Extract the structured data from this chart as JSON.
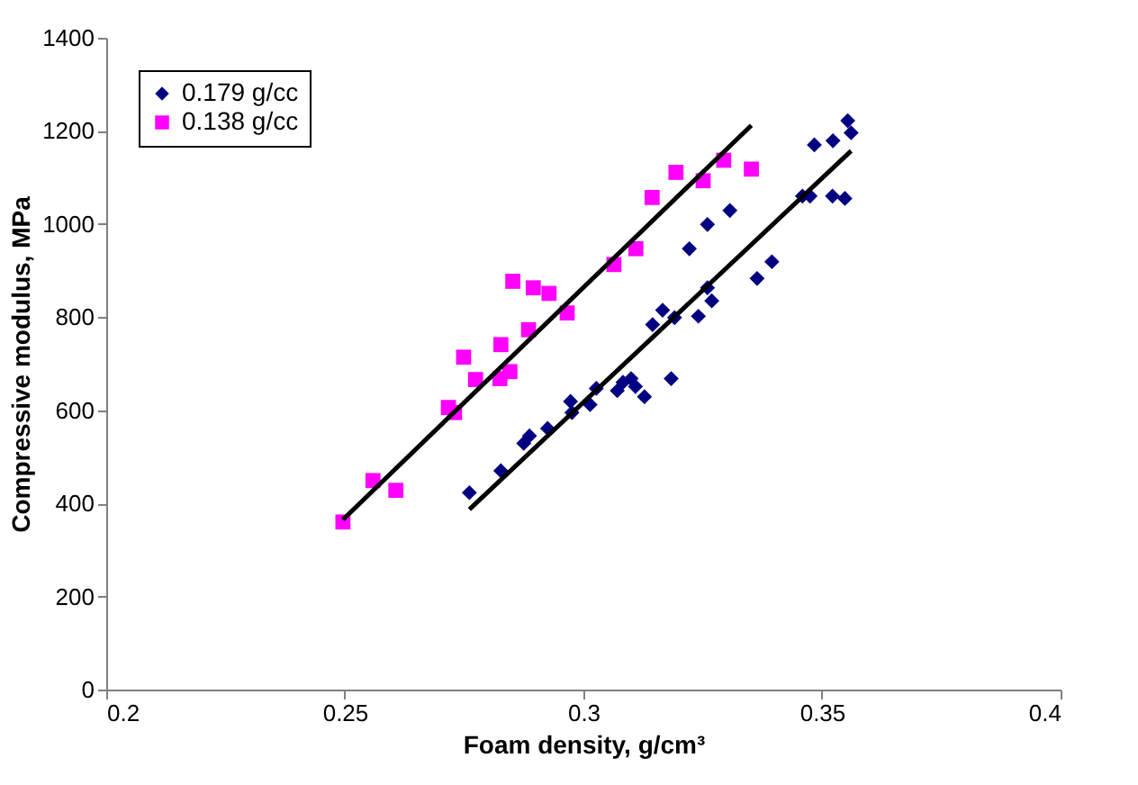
{
  "chart_data": {
    "type": "scatter",
    "xlabel": "Foam density, g/cm³",
    "ylabel": "Compressive modulus, MPa",
    "xlim": [
      0.2,
      0.4
    ],
    "xticks": [
      0.2,
      0.25,
      0.3,
      0.35,
      0.4
    ],
    "ylim": [
      0,
      1400
    ],
    "yticks": [
      0,
      200,
      400,
      600,
      800,
      1000,
      1200,
      1400
    ],
    "grid": false,
    "legend": "top left",
    "series": [
      {
        "name": "0.179 g/cc",
        "color": "#000080",
        "marker": "diamond",
        "x": [
          0.2761,
          0.2827,
          0.2875,
          0.2887,
          0.2925,
          0.2973,
          0.2976,
          0.3014,
          0.3027,
          0.3071,
          0.3083,
          0.31,
          0.3109,
          0.3128,
          0.3184,
          0.3145,
          0.3166,
          0.3191,
          0.3241,
          0.326,
          0.3269,
          0.3222,
          0.326,
          0.3307,
          0.3364,
          0.3395,
          0.3459,
          0.3475,
          0.3484,
          0.3523,
          0.3522,
          0.3548,
          0.3554,
          0.3561
        ],
        "values": [
          423,
          470,
          529,
          545,
          561,
          619,
          595,
          612,
          647,
          642,
          660,
          668,
          651,
          629,
          668,
          784,
          815,
          799,
          802,
          863,
          835,
          947,
          999,
          1029,
          883,
          919,
          1060,
          1060,
          1170,
          1179,
          1060,
          1055,
          1222,
          1196
        ]
      },
      {
        "name": "0.138 g/cc",
        "color": "#ff00ff",
        "marker": "square",
        "x": [
          0.2496,
          0.2559,
          0.2607,
          0.2717,
          0.273,
          0.2749,
          0.2774,
          0.2827,
          0.2825,
          0.2846,
          0.2852,
          0.2885,
          0.2895,
          0.2928,
          0.2966,
          0.3064,
          0.311,
          0.3144,
          0.3194,
          0.3251,
          0.3294,
          0.3352
        ],
        "values": [
          360,
          449,
          428,
          606,
          595,
          714,
          666,
          741,
          668,
          683,
          877,
          773,
          863,
          851,
          809,
          913,
          947,
          1057,
          1111,
          1093,
          1137,
          1118
        ]
      },
      {
        "type": "line",
        "color": "#000000",
        "marker": "none",
        "x": [
          0.2761,
          0.3561
        ],
        "values": [
          387,
          1157
        ]
      },
      {
        "type": "line",
        "color": "#000000",
        "marker": "none",
        "x": [
          0.2496,
          0.3352
        ],
        "values": [
          365,
          1212
        ]
      }
    ]
  }
}
